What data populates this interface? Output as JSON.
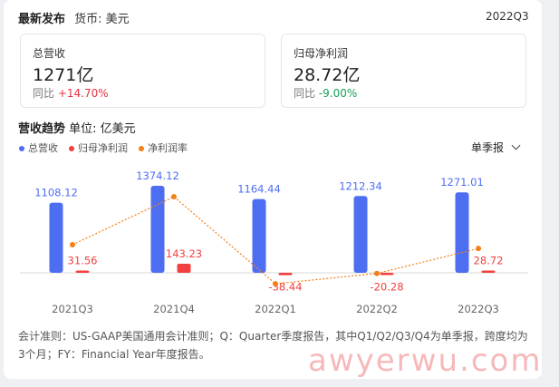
{
  "header": {
    "title": "最新发布",
    "currency": "货币: 美元",
    "period": "2022Q3"
  },
  "metrics": [
    {
      "label": "总营收",
      "value": "1271亿",
      "change_label": "同比",
      "change": "+14.70%",
      "direction": "up"
    },
    {
      "label": "归母净利润",
      "value": "28.72亿",
      "change_label": "同比",
      "change": "-9.00%",
      "direction": "down"
    }
  ],
  "section": {
    "title": "营收趋势",
    "unit": "单位: 亿美元"
  },
  "legend": [
    {
      "label": "总营收",
      "color": "#4e6ef2"
    },
    {
      "label": "归母净利润",
      "color": "#f23f3f"
    },
    {
      "label": "净利润率",
      "color": "#f57f17"
    }
  ],
  "selector": {
    "label": "单季报",
    "icon": "chevron-down-icon"
  },
  "chart_data": {
    "type": "bar",
    "categories": [
      "2021Q3",
      "2021Q4",
      "2022Q1",
      "2022Q2",
      "2022Q3"
    ],
    "series": [
      {
        "name": "总营收",
        "values": [
          1108.12,
          1374.12,
          1164.44,
          1212.34,
          1271.01
        ],
        "labels": [
          "1108.12",
          "1374.12",
          "1164.44",
          "1212.34",
          "1271.01"
        ],
        "color": "#4e6ef2"
      },
      {
        "name": "归母净利润",
        "values": [
          31.56,
          143.23,
          -38.44,
          -20.28,
          28.72
        ],
        "labels": [
          "31.56",
          "143.23",
          "-38.44",
          "-20.28",
          "28.72"
        ],
        "color": "#f23f3f"
      },
      {
        "name": "净利润率",
        "type": "line",
        "values": [
          2.85,
          10.42,
          -3.3,
          -1.67,
          2.26
        ],
        "color": "#f57f17",
        "style": "dotted"
      }
    ],
    "grid": false
  },
  "footnote": "会计准则：US-GAAP美国通用会计准则；Q：Quarter季度报告，其中Q1/Q2/Q3/Q4为单季报，跨度均为3个月；FY：Financial Year年度报告。",
  "watermark": "awyerwu.com"
}
